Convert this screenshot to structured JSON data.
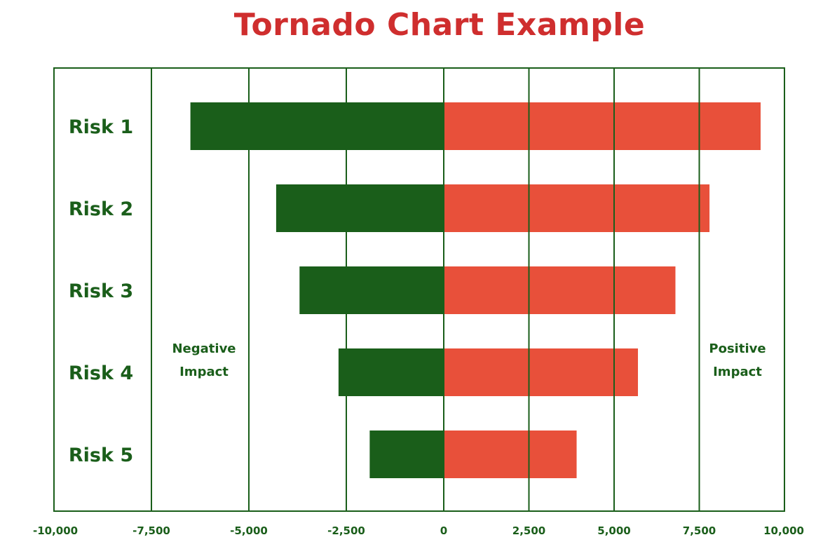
{
  "chart_data": {
    "type": "bar",
    "orientation": "horizontal",
    "title": "Tornado Chart Example",
    "xlabel": "",
    "ylabel": "",
    "categories": [
      "Risk 1",
      "Risk 2",
      "Risk 3",
      "Risk 4",
      "Risk 5"
    ],
    "series": [
      {
        "color": "#1a5e1a",
        "values": [
          -6500,
          -4300,
          -3700,
          -2700,
          -1900
        ]
      },
      {
        "color": "#e8503a",
        "values": [
          9300,
          7800,
          6800,
          5700,
          3900
        ]
      }
    ],
    "xlim": [
      -10000,
      10000
    ],
    "x_ticks": [
      "-10,000",
      "-7,500",
      "-5,000",
      "-2,500",
      "0",
      "2,500",
      "5,000",
      "7,500",
      "10,000"
    ],
    "x_tick_values": [
      -10000,
      -7500,
      -5000,
      -2500,
      0,
      2500,
      5000,
      7500,
      10000
    ],
    "annotations": {
      "negative": [
        "Negative",
        "Impact"
      ],
      "positive": [
        "Positive",
        "Impact"
      ]
    },
    "grid": true,
    "colors": {
      "frame": "#1a5e1a",
      "title": "#cf2e2e"
    }
  }
}
